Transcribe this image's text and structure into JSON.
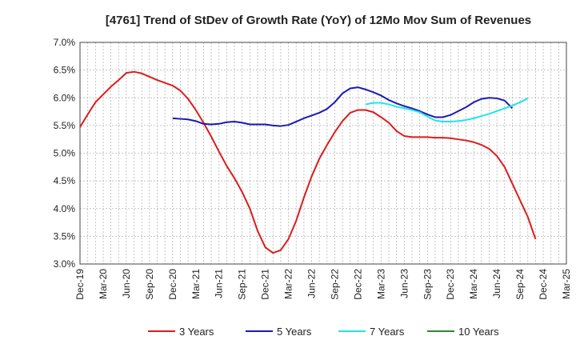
{
  "chart_data": {
    "type": "line",
    "title": "[4761]  Trend of StDev of Growth Rate (YoY) of 12Mo Mov Sum of Revenues",
    "xlabel": "",
    "ylabel": "",
    "ylim": [
      3.0,
      7.0
    ],
    "y_ticks": [
      3.0,
      3.5,
      4.0,
      4.5,
      5.0,
      5.5,
      6.0,
      6.5,
      7.0
    ],
    "y_tick_labels": [
      "3.0%",
      "3.5%",
      "4.0%",
      "4.5%",
      "5.0%",
      "5.5%",
      "6.0%",
      "6.5%",
      "7.0%"
    ],
    "x_tick_labels": [
      "Dec-19",
      "Mar-20",
      "Jun-20",
      "Sep-20",
      "Dec-20",
      "Mar-21",
      "Jun-21",
      "Sep-21",
      "Dec-21",
      "Mar-22",
      "Jun-22",
      "Sep-22",
      "Dec-22",
      "Mar-23",
      "Jun-23",
      "Sep-23",
      "Dec-23",
      "Mar-24",
      "Jun-24",
      "Sep-24",
      "Dec-24",
      "Mar-25"
    ],
    "x_index_range": [
      0,
      63
    ],
    "grid": true,
    "legend_position": "bottom",
    "series": [
      {
        "name": "3 Years",
        "color": "#dd1c1c",
        "start_index": 0,
        "values": [
          5.47,
          5.7,
          5.92,
          6.06,
          6.2,
          6.32,
          6.45,
          6.47,
          6.44,
          6.38,
          6.32,
          6.27,
          6.22,
          6.13,
          5.98,
          5.78,
          5.55,
          5.3,
          5.03,
          4.77,
          4.55,
          4.3,
          4.0,
          3.6,
          3.3,
          3.2,
          3.25,
          3.45,
          3.78,
          4.2,
          4.58,
          4.9,
          5.15,
          5.38,
          5.58,
          5.73,
          5.78,
          5.78,
          5.74,
          5.65,
          5.55,
          5.4,
          5.31,
          5.29,
          5.29,
          5.29,
          5.28,
          5.28,
          5.27,
          5.25,
          5.23,
          5.2,
          5.15,
          5.08,
          4.95,
          4.75,
          4.45,
          4.15,
          3.85,
          3.45
        ]
      },
      {
        "name": "5 Years",
        "color": "#1a1ab4",
        "start_index": 12,
        "values": [
          5.63,
          5.62,
          5.61,
          5.58,
          5.53,
          5.52,
          5.53,
          5.56,
          5.57,
          5.55,
          5.52,
          5.52,
          5.52,
          5.5,
          5.49,
          5.51,
          5.57,
          5.63,
          5.68,
          5.73,
          5.8,
          5.92,
          6.08,
          6.17,
          6.19,
          6.15,
          6.1,
          6.04,
          5.96,
          5.9,
          5.85,
          5.81,
          5.76,
          5.7,
          5.65,
          5.65,
          5.69,
          5.76,
          5.83,
          5.92,
          5.98,
          6.0,
          5.99,
          5.95,
          5.81
        ]
      },
      {
        "name": "7 Years",
        "color": "#1fe6e6",
        "start_index": 37,
        "values": [
          5.88,
          5.91,
          5.91,
          5.88,
          5.84,
          5.81,
          5.78,
          5.74,
          5.66,
          5.59,
          5.57,
          5.57,
          5.58,
          5.6,
          5.63,
          5.67,
          5.71,
          5.76,
          5.81,
          5.86,
          5.92,
          5.99
        ]
      },
      {
        "name": "10 Years",
        "color": "#2a8a2a",
        "start_index": 0,
        "values": []
      }
    ]
  }
}
